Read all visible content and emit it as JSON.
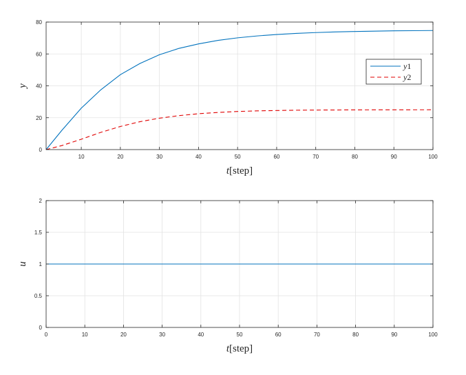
{
  "chart_data": [
    {
      "type": "line",
      "xlabel_var": "t",
      "xlabel_unit": "[step]",
      "ylabel": "y",
      "xlim": [
        1,
        100
      ],
      "ylim": [
        0,
        80
      ],
      "xticks": [
        10,
        20,
        30,
        40,
        50,
        60,
        70,
        80,
        90,
        100
      ],
      "yticks": [
        0,
        20,
        40,
        60,
        80
      ],
      "grid": true,
      "legend_position": "right, below top",
      "x": [
        1,
        5,
        10,
        15,
        20,
        25,
        30,
        35,
        40,
        45,
        50,
        55,
        60,
        65,
        70,
        75,
        80,
        85,
        90,
        95,
        100
      ],
      "series": [
        {
          "name": "y1",
          "var": "y",
          "sub": "1",
          "color": "#0072BD",
          "style": "solid",
          "values": [
            0,
            12,
            26,
            37.5,
            47,
            54,
            59.5,
            63.5,
            66.3,
            68.5,
            70.1,
            71.3,
            72.2,
            72.9,
            73.4,
            73.8,
            74.1,
            74.3,
            74.5,
            74.6,
            74.7
          ]
        },
        {
          "name": "y2",
          "var": "y",
          "sub": "2",
          "color": "#E00000",
          "style": "dashed",
          "values": [
            0,
            2.5,
            6.5,
            10.8,
            14.5,
            17.5,
            19.7,
            21.3,
            22.5,
            23.3,
            23.9,
            24.3,
            24.5,
            24.7,
            24.8,
            24.85,
            24.9,
            24.93,
            24.95,
            24.97,
            24.98
          ]
        }
      ]
    },
    {
      "type": "line",
      "xlabel_var": "t",
      "xlabel_unit": "[step]",
      "ylabel": "u",
      "xlim": [
        0,
        100
      ],
      "ylim": [
        0,
        2
      ],
      "xticks": [
        0,
        10,
        20,
        30,
        40,
        50,
        60,
        70,
        80,
        90,
        100
      ],
      "yticks": [
        0,
        0.5,
        1,
        1.5,
        2
      ],
      "grid": true,
      "x": [
        0,
        100
      ],
      "series": [
        {
          "color": "#0072BD",
          "style": "solid",
          "values": [
            1,
            1
          ]
        }
      ]
    }
  ]
}
